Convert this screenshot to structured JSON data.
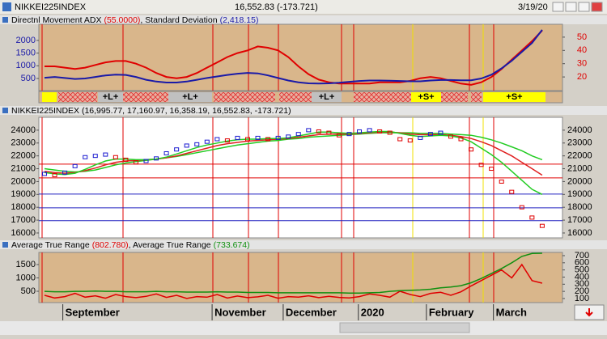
{
  "window": {
    "title": "NIKKEI225INDEX",
    "quote": "16,552.83 (-173.721)",
    "date": "3/19/20"
  },
  "x_axis": {
    "xlim": [
      -0.56,
      51
    ],
    "xticks": [
      {
        "value": 1.8,
        "label": "September"
      },
      {
        "value": 16.5,
        "label": "November"
      },
      {
        "value": 23.5,
        "label": "December"
      },
      {
        "value": 30.9,
        "label": "2020"
      },
      {
        "value": 37.6,
        "label": "February"
      },
      {
        "value": 44.2,
        "label": "March"
      }
    ]
  },
  "chart_data": [
    {
      "type": "line",
      "legend_separator": ", ",
      "series": [
        {
          "name": "Directnl Movement ADX",
          "last_label": "(55.0000)",
          "color": "#e00000",
          "axis": "y2",
          "values": [
            28,
            28,
            27,
            26,
            27,
            29,
            31,
            32,
            32,
            30,
            27,
            23,
            20,
            19,
            20,
            23,
            27,
            31,
            35,
            38,
            40,
            43,
            42,
            40,
            35,
            28,
            22,
            18,
            16,
            15,
            15,
            15,
            15,
            16,
            16,
            16,
            17,
            19,
            20,
            19,
            17,
            15,
            14,
            16,
            20,
            26,
            33,
            40,
            47,
            55
          ]
        },
        {
          "name": "Standard Deviation",
          "last_label": "(2,418.15)",
          "color": "#1a1aa8",
          "values": [
            530,
            560,
            520,
            480,
            500,
            560,
            620,
            650,
            640,
            560,
            450,
            380,
            340,
            340,
            380,
            450,
            520,
            580,
            640,
            690,
            720,
            700,
            620,
            520,
            420,
            350,
            310,
            300,
            310,
            330,
            370,
            400,
            420,
            420,
            410,
            400,
            390,
            390,
            420,
            440,
            440,
            430,
            430,
            500,
            650,
            900,
            1200,
            1550,
            1900,
            2418.15
          ]
        }
      ],
      "ylim": [
        22,
        2637
      ],
      "yticks": [
        500,
        1000,
        1500,
        2000
      ],
      "ytick_color": "#1a1aa8",
      "y2lim": [
        9.7,
        59.7
      ],
      "y2ticks": [
        20,
        30,
        40,
        50
      ],
      "y2tick_color": "#e00000",
      "signals": [
        "+L+",
        "+L+",
        "+L+",
        "+S+",
        "+S+"
      ]
    },
    {
      "type": "line",
      "ohlc_label": "NIKKEI225INDEX (16,995.77, 17,160.97, 16,358.19, 16,552.83, -173.721)",
      "values": [
        20600,
        20500,
        20700,
        21200,
        21900,
        22000,
        22100,
        21900,
        21700,
        21500,
        21600,
        21800,
        22200,
        22500,
        22800,
        22900,
        23100,
        23300,
        23200,
        23400,
        23300,
        23400,
        23300,
        23400,
        23500,
        23700,
        24000,
        23900,
        23800,
        23600,
        23700,
        23900,
        24000,
        23900,
        23800,
        23300,
        23200,
        23400,
        23700,
        23800,
        23500,
        23300,
        22500,
        21300,
        21000,
        20000,
        19200,
        18000,
        17200,
        16552.83
      ],
      "up_color": "#1a1ad0",
      "down_color": "#e00000",
      "series": [
        {
          "color": "#22cc22",
          "values": [
            21000,
            20900,
            20800,
            20750,
            20800,
            20900,
            21100,
            21300,
            21450,
            21550,
            21650,
            21750,
            21850,
            21950,
            22100,
            22250,
            22400,
            22550,
            22700,
            22850,
            22950,
            23050,
            23150,
            23200,
            23300,
            23350,
            23450,
            23500,
            23550,
            23600,
            23650,
            23700,
            23750,
            23800,
            23800,
            23800,
            23800,
            23750,
            23750,
            23750,
            23700,
            23650,
            23600,
            23450,
            23250,
            23000,
            22700,
            22400,
            22000,
            21700
          ]
        },
        {
          "color": "#e02020",
          "values": [
            20800,
            20700,
            20650,
            20700,
            20850,
            21050,
            21300,
            21500,
            21600,
            21650,
            21700,
            21750,
            21850,
            22000,
            22200,
            22400,
            22600,
            22800,
            22950,
            23050,
            23150,
            23200,
            23250,
            23300,
            23350,
            23450,
            23550,
            23650,
            23700,
            23700,
            23700,
            23750,
            23800,
            23850,
            23850,
            23800,
            23700,
            23650,
            23650,
            23650,
            23600,
            23500,
            23350,
            23100,
            22800,
            22400,
            22000,
            21500,
            21000,
            20500
          ]
        },
        {
          "color": "#22cc22",
          "values": [
            20700,
            20600,
            20550,
            20650,
            20950,
            21300,
            21600,
            21750,
            21750,
            21700,
            21700,
            21750,
            21900,
            22150,
            22400,
            22650,
            22850,
            23000,
            23150,
            23250,
            23300,
            23300,
            23350,
            23350,
            23400,
            23550,
            23700,
            23850,
            23850,
            23800,
            23750,
            23800,
            23850,
            23900,
            23900,
            23750,
            23600,
            23500,
            23550,
            23600,
            23550,
            23400,
            23100,
            22600,
            22100,
            21500,
            20800,
            20100,
            19400,
            19000
          ]
        }
      ],
      "hlines": [
        {
          "value": 21360,
          "color": "#e00000"
        },
        {
          "value": 20290,
          "color": "#e00000"
        },
        {
          "value": 19030,
          "color": "#2020c0"
        },
        {
          "value": 17960,
          "color": "#2020c0"
        },
        {
          "value": 16960,
          "color": "#2020c0"
        }
      ],
      "ylim": [
        15620,
        25000
      ],
      "yticks": [
        16000,
        17000,
        18000,
        19000,
        20000,
        21000,
        22000,
        23000,
        24000
      ],
      "ytick_color": "#000000",
      "y2tick_color": "#000000"
    },
    {
      "type": "line",
      "legend_separator": ", ",
      "series": [
        {
          "name": "Average True Range",
          "last_label": "(802.780)",
          "color": "#e00000",
          "values": [
            350,
            250,
            300,
            420,
            280,
            330,
            240,
            380,
            300,
            260,
            310,
            400,
            270,
            350,
            230,
            300,
            280,
            380,
            250,
            320,
            260,
            290,
            350,
            240,
            300,
            280,
            330,
            260,
            310,
            270,
            250,
            300,
            400,
            350,
            280,
            500,
            380,
            300,
            420,
            460,
            350,
            480,
            700,
            900,
            1100,
            1300,
            1000,
            1500,
            900,
            802.78
          ]
        },
        {
          "name": "Average True Range",
          "last_label": "(733.674)",
          "color": "#109010",
          "axis": "y2",
          "values": [
            200,
            195,
            195,
            200,
            200,
            205,
            200,
            200,
            195,
            195,
            195,
            200,
            195,
            195,
            190,
            190,
            190,
            195,
            190,
            190,
            185,
            185,
            185,
            180,
            180,
            180,
            180,
            180,
            180,
            180,
            175,
            175,
            180,
            185,
            200,
            210,
            215,
            220,
            230,
            250,
            260,
            280,
            320,
            380,
            450,
            520,
            600,
            690,
            730,
            733.674
          ]
        }
      ],
      "ylim": [
        76,
        1955
      ],
      "yticks": [
        500,
        1000,
        1500
      ],
      "ytick_color": "#000000",
      "y2lim": [
        43,
        745
      ],
      "y2ticks": [
        100,
        200,
        300,
        400,
        500,
        600,
        700
      ],
      "y2tick_color": "#000000"
    }
  ]
}
